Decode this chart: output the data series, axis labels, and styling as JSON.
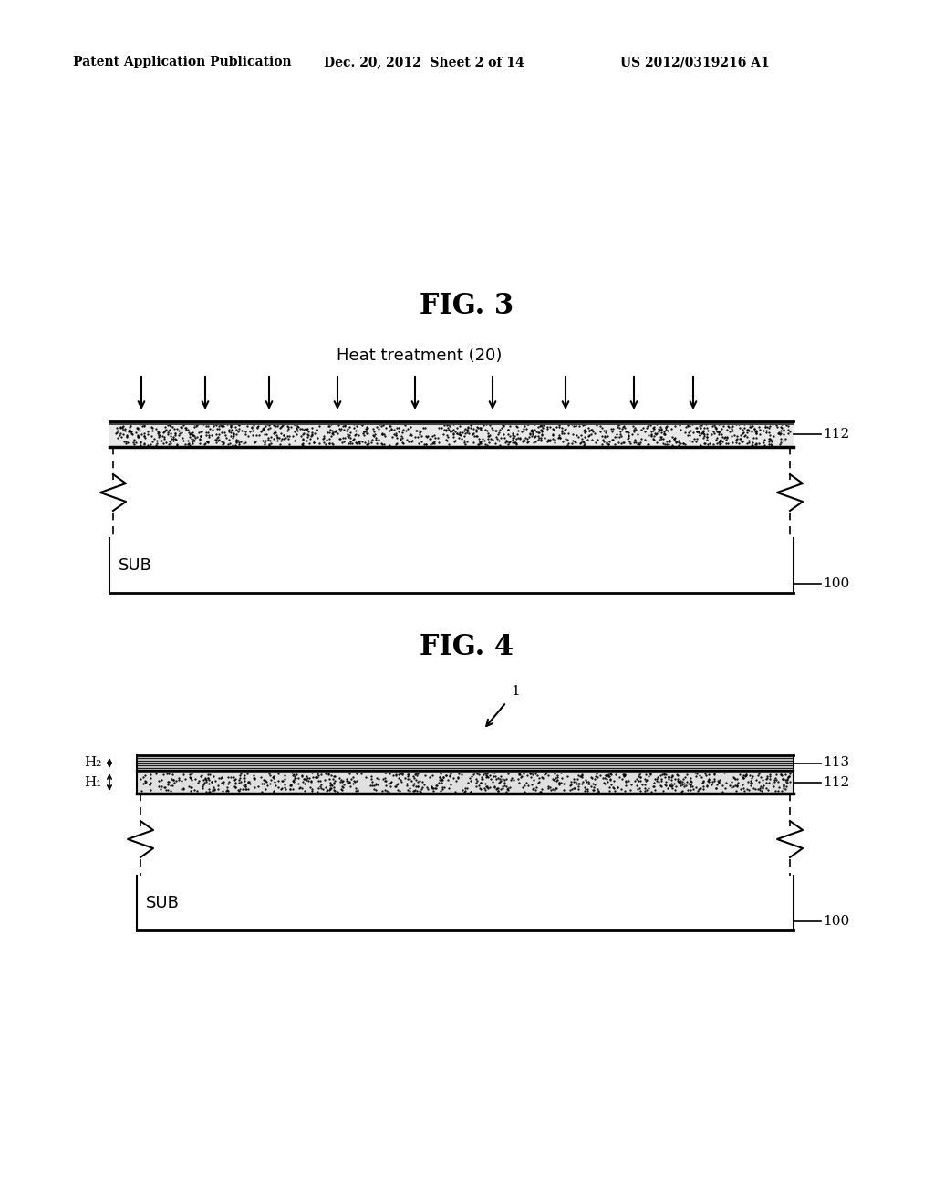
{
  "bg_color": "#ffffff",
  "header_text": "Patent Application Publication",
  "header_date": "Dec. 20, 2012  Sheet 2 of 14",
  "header_patent": "US 2012/0319216 A1",
  "fig3_title": "FIG. 3",
  "fig4_title": "FIG. 4",
  "heat_treatment_label": "Heat treatment (20)",
  "sub_label": "SUB",
  "label_100": "100",
  "label_112_fig3": "112",
  "label_112_fig4": "112",
  "label_113": "113",
  "label_1": "1",
  "label_H1": "H₁",
  "label_H2": "H₂"
}
